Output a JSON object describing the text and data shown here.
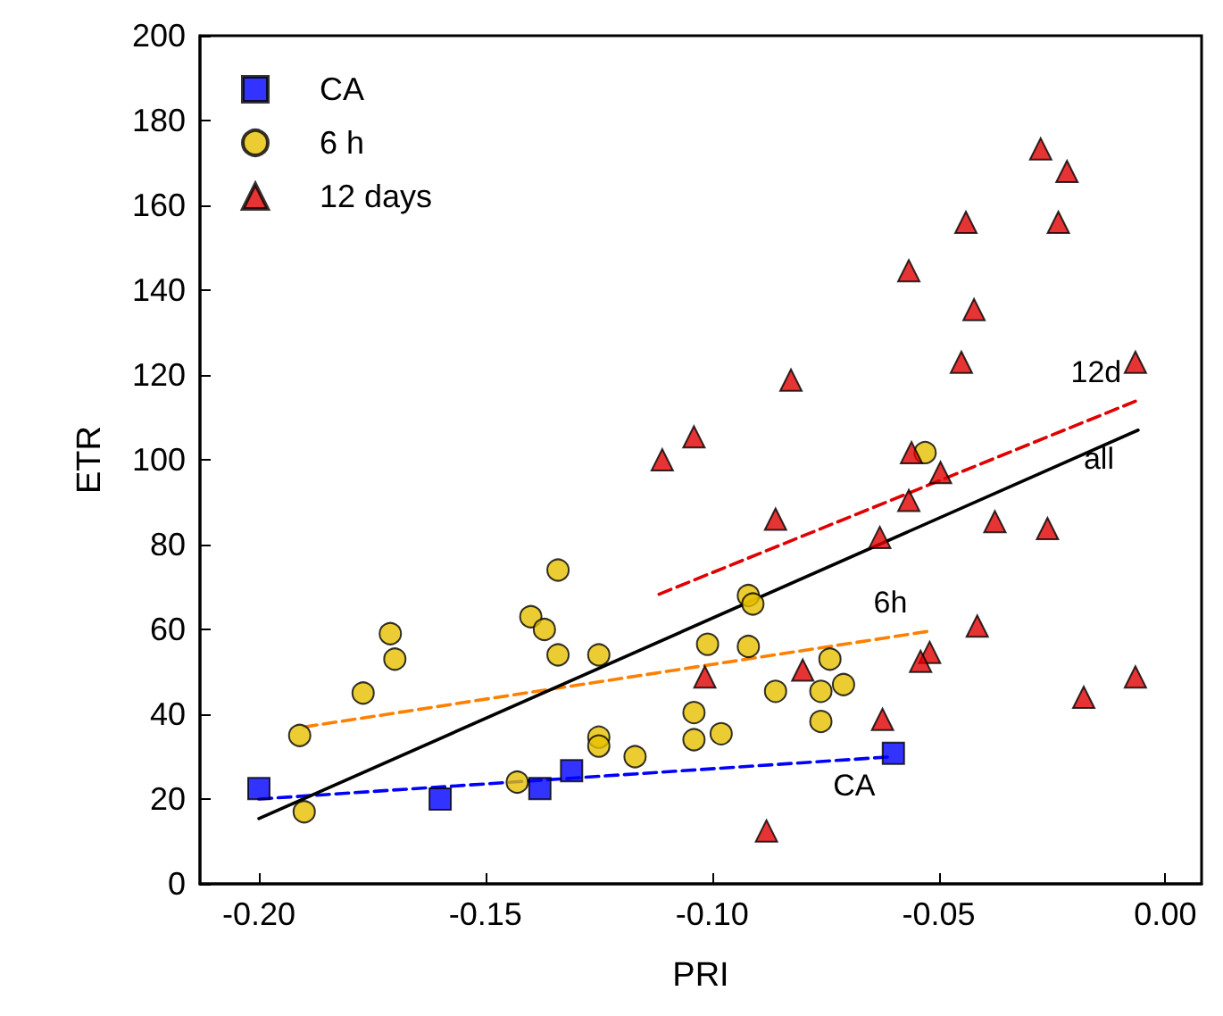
{
  "chart_data": {
    "type": "scatter",
    "xlabel": "PRI",
    "ylabel": "ETR",
    "xlim": [
      -0.213,
      0.008
    ],
    "ylim": [
      0,
      200
    ],
    "xticks": [
      {
        "value": -0.2,
        "label": "-0.20"
      },
      {
        "value": -0.15,
        "label": "-0.15"
      },
      {
        "value": -0.1,
        "label": "-0.10"
      },
      {
        "value": -0.05,
        "label": "-0.05"
      },
      {
        "value": 0,
        "label": "0.00"
      }
    ],
    "yticks": [
      0,
      20,
      40,
      60,
      80,
      100,
      120,
      140,
      160,
      180,
      200
    ],
    "grid": false,
    "legend": "top left",
    "series": [
      {
        "name": "CA",
        "marker": "square",
        "color": "#0000ff",
        "x": [
          -0.2,
          -0.16,
          -0.138,
          -0.131,
          -0.06
        ],
        "values": [
          22.5,
          20,
          22.5,
          26.7,
          30.8
        ]
      },
      {
        "name": "6 h",
        "marker": "circle",
        "color": "#e6c000",
        "x": [
          -0.191,
          -0.19,
          -0.177,
          -0.171,
          -0.17,
          -0.14,
          -0.137,
          -0.134,
          -0.134,
          -0.125,
          -0.125,
          -0.125,
          -0.143,
          -0.117,
          -0.104,
          -0.104,
          -0.101,
          -0.098,
          -0.092,
          -0.091,
          -0.092,
          -0.086,
          -0.076,
          -0.074,
          -0.071,
          -0.076,
          -0.053
        ],
        "values": [
          35,
          17,
          45,
          59,
          53,
          63,
          60,
          74,
          54,
          54,
          34.6,
          32.5,
          24,
          30,
          40.4,
          34,
          56.5,
          35.4,
          68,
          66,
          56,
          45.4,
          45.4,
          53,
          47,
          38.3,
          101.7
        ]
      },
      {
        "name": "12 days",
        "marker": "triangle",
        "color": "#e00000",
        "x": [
          -0.0275,
          -0.0217,
          -0.044,
          -0.0236,
          -0.0566,
          -0.0422,
          -0.045,
          -0.0066,
          -0.0826,
          -0.104,
          -0.056,
          -0.0496,
          -0.111,
          -0.0566,
          -0.086,
          -0.0376,
          -0.026,
          -0.063,
          -0.0415,
          -0.052,
          -0.054,
          -0.08,
          -0.1016,
          -0.0066,
          -0.018,
          -0.0624,
          -0.088
        ],
        "values": [
          173.3,
          168,
          156,
          156,
          144.6,
          135.4,
          123,
          123,
          118.8,
          105.4,
          101.7,
          97,
          100,
          90.4,
          86,
          85.4,
          83.8,
          81.7,
          60.8,
          54.6,
          52.5,
          50.4,
          48.8,
          48.8,
          44,
          38.8,
          12.5
        ]
      },
      {
        "name": "CA",
        "type": "line",
        "line_style": "dashed",
        "marker": "none",
        "color": "#0000ff",
        "x": [
          -0.2,
          -0.06
        ],
        "values": [
          20,
          30
        ]
      },
      {
        "name": "6h",
        "type": "line",
        "line_style": "dashed",
        "marker": "none",
        "color": "#ff8000",
        "x": [
          -0.19,
          -0.052
        ],
        "values": [
          37,
          59.6
        ]
      },
      {
        "name": "12d",
        "type": "line",
        "line_style": "dashed",
        "marker": "none",
        "color": "#e00000",
        "x": [
          -0.1117,
          -0.0066
        ],
        "values": [
          68.3,
          113.8
        ]
      },
      {
        "name": "all",
        "type": "line",
        "line_style": "solid",
        "marker": "none",
        "color": "#000000",
        "x": [
          -0.2,
          -0.006
        ],
        "values": [
          15.4,
          107
        ]
      }
    ]
  }
}
